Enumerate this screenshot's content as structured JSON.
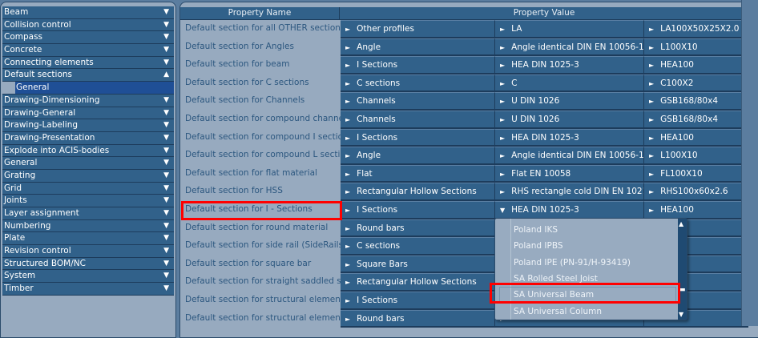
{
  "sidebar": {
    "items": [
      {
        "label": "Beam",
        "expanded": false
      },
      {
        "label": "Collision control",
        "expanded": false
      },
      {
        "label": "Compass",
        "expanded": false
      },
      {
        "label": "Concrete",
        "expanded": false
      },
      {
        "label": "Connecting elements",
        "expanded": false
      },
      {
        "label": "Default sections",
        "expanded": true,
        "children": [
          "General"
        ]
      },
      {
        "label": "Drawing-Dimensioning",
        "expanded": false
      },
      {
        "label": "Drawing-General",
        "expanded": false
      },
      {
        "label": "Drawing-Labeling",
        "expanded": false
      },
      {
        "label": "Drawing-Presentation",
        "expanded": false
      },
      {
        "label": "Explode into ACIS-bodies",
        "expanded": false
      },
      {
        "label": "General",
        "expanded": false
      },
      {
        "label": "Grating",
        "expanded": false
      },
      {
        "label": "Grid",
        "expanded": false
      },
      {
        "label": "Joints",
        "expanded": false
      },
      {
        "label": "Layer assignment",
        "expanded": false
      },
      {
        "label": "Numbering",
        "expanded": false
      },
      {
        "label": "Plate",
        "expanded": false
      },
      {
        "label": "Revision control",
        "expanded": false
      },
      {
        "label": "Structured BOM/NC",
        "expanded": false
      },
      {
        "label": "System",
        "expanded": false
      },
      {
        "label": "Timber",
        "expanded": false
      }
    ]
  },
  "table": {
    "headers": {
      "name": "Property Name",
      "value": "Property Value"
    },
    "rows": [
      [
        "Default section for all OTHER sections",
        "Other profiles",
        "LA",
        "LA100X50X25X2.0"
      ],
      [
        "Default section for Angles",
        "Angle",
        "Angle identical DIN EN 10056-1",
        "L100X10"
      ],
      [
        "Default section for beam",
        "I Sections",
        "HEA DIN 1025-3",
        "HEA100"
      ],
      [
        "Default section for C sections",
        "C sections",
        "C",
        "C100X2"
      ],
      [
        "Default section for Channels",
        "Channels",
        "U DIN 1026",
        "GSB168/80x4"
      ],
      [
        "Default section for compound channels",
        "Channels",
        "U DIN 1026",
        "GSB168/80x4"
      ],
      [
        "Default section for compound I sections",
        "I Sections",
        "HEA DIN 1025-3",
        "HEA100"
      ],
      [
        "Default section for compound L sections",
        "Angle",
        "Angle identical DIN EN 10056-1",
        "L100X10"
      ],
      [
        "Default section for flat material",
        "Flat",
        "Flat EN 10058",
        "FL100X10"
      ],
      [
        "Default section for HSS",
        "Rectangular Hollow Sections",
        "RHS rectangle cold DIN EN 10219-2",
        "RHS100x60x2.6"
      ],
      [
        "Default section for I - Sections",
        "I Sections",
        "HEA DIN 1025-3",
        "HEA100"
      ],
      [
        "Default section for round material",
        "Round bars",
        "",
        ""
      ],
      [
        "Default section for side rail (SideRails jo",
        "C sections",
        "",
        ""
      ],
      [
        "Default section for square bar",
        "Square Bars",
        "",
        "00"
      ],
      [
        "Default section for straight saddled stair",
        "Rectangular Hollow Sections",
        "",
        ""
      ],
      [
        "Default section for structural element (C",
        "I Sections",
        "",
        ""
      ],
      [
        "Default section for structural element (D",
        "Round bars",
        "",
        ""
      ]
    ]
  },
  "dropdown": {
    "options": [
      "Poland IKS",
      "Poland IPBS",
      "Poland IPE (PN-91/H-93419)",
      "SA Rolled Steel Joist",
      "SA Universal Beam",
      "SA Universal Column"
    ],
    "highlighted": "SA Universal Beam"
  },
  "colors": {
    "cell": "#31618a",
    "panel": "#97aabf",
    "selected": "#1f4f96",
    "highlight_box": "#ff0000"
  }
}
